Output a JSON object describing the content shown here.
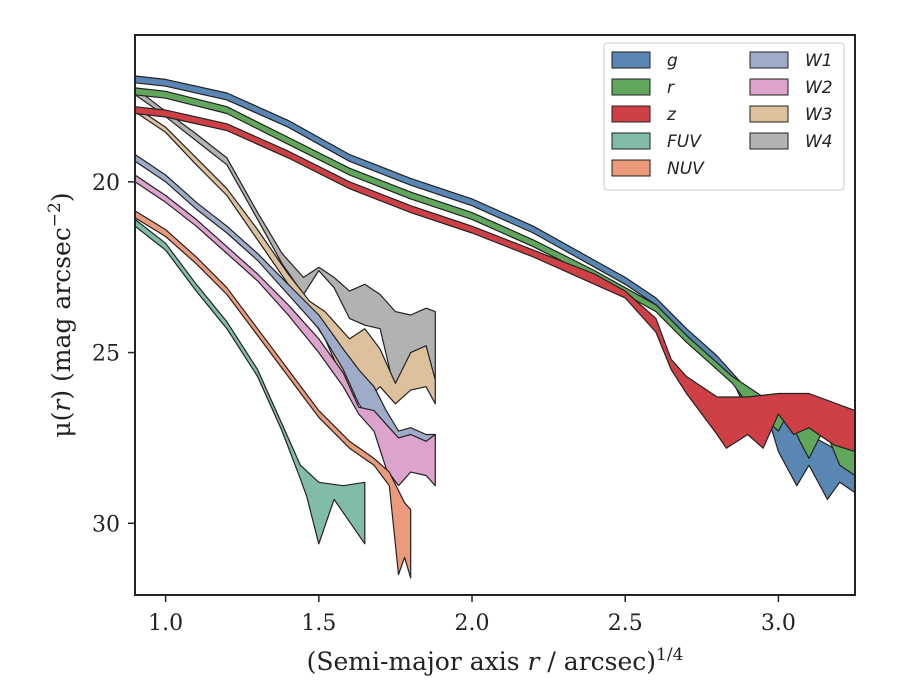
{
  "chart_data": {
    "type": "area",
    "xlabel": {
      "prefix": "(Semi-major axis ",
      "var": "r",
      "mid": " / arcsec)",
      "sup": "1/4"
    },
    "ylabel": {
      "pre": "μ(",
      "var": "r",
      "post": ") (mag arcsec",
      "sup": "−2",
      "end": ")"
    },
    "xlim": [
      0.9,
      3.25
    ],
    "ylim": [
      32.1,
      15.7
    ],
    "y_inverted": true,
    "grid": false,
    "xticks": [
      {
        "v": 1.0,
        "label": "1.0"
      },
      {
        "v": 1.5,
        "label": "1.5"
      },
      {
        "v": 2.0,
        "label": "2.0"
      },
      {
        "v": 2.5,
        "label": "2.5"
      },
      {
        "v": 3.0,
        "label": "3.0"
      }
    ],
    "yticks": [
      {
        "v": 20,
        "label": "20"
      },
      {
        "v": 25,
        "label": "25"
      },
      {
        "v": 30,
        "label": "30"
      }
    ],
    "legend": {
      "position": "top-right",
      "columns": 2
    },
    "series": [
      {
        "name": "W4",
        "color": "#b2b2b2",
        "upper": [
          [
            0.9,
            17.25
          ],
          [
            0.98,
            17.8
          ],
          [
            1.1,
            18.6
          ],
          [
            1.2,
            19.3
          ],
          [
            1.3,
            20.9
          ],
          [
            1.38,
            22.1
          ],
          [
            1.45,
            22.8
          ],
          [
            1.5,
            22.5
          ],
          [
            1.55,
            22.8
          ],
          [
            1.6,
            23.2
          ],
          [
            1.65,
            23.0
          ],
          [
            1.7,
            23.3
          ],
          [
            1.75,
            23.8
          ],
          [
            1.8,
            23.9
          ],
          [
            1.85,
            23.7
          ],
          [
            1.88,
            23.8
          ]
        ],
        "lower": [
          [
            0.9,
            17.45
          ],
          [
            0.98,
            17.95
          ],
          [
            1.1,
            18.8
          ],
          [
            1.2,
            19.5
          ],
          [
            1.3,
            21.1
          ],
          [
            1.38,
            22.4
          ],
          [
            1.45,
            23.3
          ],
          [
            1.5,
            22.6
          ],
          [
            1.55,
            23.1
          ],
          [
            1.6,
            24.0
          ],
          [
            1.65,
            24.2
          ],
          [
            1.7,
            24.3
          ],
          [
            1.75,
            26.2
          ],
          [
            1.8,
            25.0
          ],
          [
            1.85,
            24.9
          ],
          [
            1.88,
            25.8
          ]
        ]
      },
      {
        "name": "W3",
        "color": "#ddc09c",
        "upper": [
          [
            0.9,
            17.8
          ],
          [
            1.0,
            18.4
          ],
          [
            1.1,
            19.3
          ],
          [
            1.2,
            20.2
          ],
          [
            1.3,
            21.4
          ],
          [
            1.4,
            22.7
          ],
          [
            1.47,
            23.5
          ],
          [
            1.52,
            23.8
          ],
          [
            1.56,
            24.2
          ],
          [
            1.6,
            24.6
          ],
          [
            1.65,
            24.3
          ],
          [
            1.7,
            24.9
          ],
          [
            1.75,
            25.9
          ],
          [
            1.8,
            25.0
          ],
          [
            1.85,
            24.8
          ],
          [
            1.88,
            25.8
          ]
        ],
        "lower": [
          [
            0.9,
            17.95
          ],
          [
            1.0,
            18.55
          ],
          [
            1.1,
            19.5
          ],
          [
            1.2,
            20.4
          ],
          [
            1.3,
            21.7
          ],
          [
            1.4,
            23.0
          ],
          [
            1.47,
            23.9
          ],
          [
            1.52,
            24.6
          ],
          [
            1.56,
            25.4
          ],
          [
            1.6,
            26.2
          ],
          [
            1.65,
            26.4
          ],
          [
            1.7,
            26.0
          ],
          [
            1.75,
            26.5
          ],
          [
            1.8,
            26.1
          ],
          [
            1.85,
            26.0
          ],
          [
            1.88,
            26.5
          ]
        ]
      },
      {
        "name": "W1",
        "color": "#9eacc9",
        "upper": [
          [
            0.9,
            19.2
          ],
          [
            1.0,
            19.8
          ],
          [
            1.1,
            20.6
          ],
          [
            1.2,
            21.3
          ],
          [
            1.3,
            22.1
          ],
          [
            1.4,
            23.0
          ],
          [
            1.5,
            23.9
          ],
          [
            1.58,
            24.9
          ],
          [
            1.63,
            25.5
          ],
          [
            1.68,
            26.0
          ],
          [
            1.72,
            26.7
          ],
          [
            1.76,
            27.3
          ],
          [
            1.8,
            27.2
          ],
          [
            1.85,
            27.4
          ],
          [
            1.88,
            27.4
          ]
        ],
        "lower": [
          [
            0.9,
            19.4
          ],
          [
            1.0,
            20.0
          ],
          [
            1.1,
            20.8
          ],
          [
            1.2,
            21.5
          ],
          [
            1.3,
            22.3
          ],
          [
            1.4,
            23.3
          ],
          [
            1.5,
            24.3
          ],
          [
            1.58,
            25.5
          ],
          [
            1.63,
            26.5
          ],
          [
            1.68,
            27.1
          ],
          [
            1.72,
            27.9
          ],
          [
            1.76,
            27.7
          ],
          [
            1.8,
            28.1
          ],
          [
            1.85,
            27.9
          ],
          [
            1.88,
            27.6
          ]
        ]
      },
      {
        "name": "W2",
        "color": "#dca3cc",
        "upper": [
          [
            0.9,
            19.8
          ],
          [
            1.0,
            20.4
          ],
          [
            1.1,
            21.1
          ],
          [
            1.2,
            21.9
          ],
          [
            1.3,
            22.7
          ],
          [
            1.4,
            23.6
          ],
          [
            1.5,
            24.6
          ],
          [
            1.58,
            25.6
          ],
          [
            1.63,
            26.6
          ],
          [
            1.68,
            26.7
          ],
          [
            1.72,
            27.1
          ],
          [
            1.76,
            27.5
          ],
          [
            1.8,
            27.4
          ],
          [
            1.85,
            27.6
          ],
          [
            1.88,
            27.4
          ]
        ],
        "lower": [
          [
            0.9,
            20.0
          ],
          [
            1.0,
            20.6
          ],
          [
            1.1,
            21.3
          ],
          [
            1.2,
            22.1
          ],
          [
            1.3,
            22.9
          ],
          [
            1.4,
            23.9
          ],
          [
            1.5,
            25.0
          ],
          [
            1.58,
            26.0
          ],
          [
            1.63,
            26.8
          ],
          [
            1.68,
            27.3
          ],
          [
            1.72,
            28.4
          ],
          [
            1.76,
            28.9
          ],
          [
            1.8,
            28.5
          ],
          [
            1.85,
            28.6
          ],
          [
            1.88,
            28.9
          ]
        ]
      },
      {
        "name": "NUV",
        "color": "#eb9b7c",
        "upper": [
          [
            0.9,
            20.85
          ],
          [
            1.0,
            21.4
          ],
          [
            1.1,
            22.2
          ],
          [
            1.2,
            23.1
          ],
          [
            1.3,
            24.3
          ],
          [
            1.4,
            25.5
          ],
          [
            1.5,
            26.7
          ],
          [
            1.6,
            27.6
          ],
          [
            1.68,
            28.1
          ],
          [
            1.73,
            28.5
          ],
          [
            1.78,
            29.4
          ],
          [
            1.8,
            29.6
          ]
        ],
        "lower": [
          [
            0.9,
            21.05
          ],
          [
            1.0,
            21.6
          ],
          [
            1.1,
            22.4
          ],
          [
            1.2,
            23.3
          ],
          [
            1.3,
            24.5
          ],
          [
            1.4,
            25.7
          ],
          [
            1.5,
            26.9
          ],
          [
            1.6,
            27.8
          ],
          [
            1.68,
            28.3
          ],
          [
            1.73,
            28.9
          ],
          [
            1.76,
            31.5
          ],
          [
            1.78,
            31.0
          ],
          [
            1.8,
            31.6
          ]
        ]
      },
      {
        "name": "FUV",
        "color": "#80bca8",
        "upper": [
          [
            0.9,
            21.1
          ],
          [
            1.0,
            21.8
          ],
          [
            1.1,
            23.0
          ],
          [
            1.2,
            24.1
          ],
          [
            1.3,
            25.5
          ],
          [
            1.38,
            27.1
          ],
          [
            1.44,
            28.3
          ],
          [
            1.5,
            28.8
          ],
          [
            1.58,
            28.9
          ],
          [
            1.65,
            28.8
          ]
        ],
        "lower": [
          [
            0.9,
            21.3
          ],
          [
            1.0,
            22.0
          ],
          [
            1.1,
            23.2
          ],
          [
            1.2,
            24.3
          ],
          [
            1.3,
            25.7
          ],
          [
            1.38,
            27.3
          ],
          [
            1.44,
            28.7
          ],
          [
            1.46,
            29.2
          ],
          [
            1.5,
            30.6
          ],
          [
            1.55,
            29.3
          ],
          [
            1.65,
            30.6
          ]
        ]
      },
      {
        "name": "g",
        "color": "#5a86b4",
        "upper": [
          [
            0.9,
            16.9
          ],
          [
            1.0,
            17.0
          ],
          [
            1.2,
            17.4
          ],
          [
            1.4,
            18.2
          ],
          [
            1.6,
            19.2
          ],
          [
            1.8,
            19.9
          ],
          [
            2.0,
            20.5
          ],
          [
            2.2,
            21.3
          ],
          [
            2.4,
            22.3
          ],
          [
            2.5,
            22.8
          ],
          [
            2.6,
            23.4
          ],
          [
            2.7,
            24.3
          ],
          [
            2.8,
            25.1
          ],
          [
            2.85,
            25.6
          ],
          [
            2.9,
            26.1
          ],
          [
            3.0,
            26.6
          ],
          [
            3.1,
            27.4
          ],
          [
            3.2,
            27.9
          ],
          [
            3.25,
            28.5
          ]
        ],
        "lower": [
          [
            0.9,
            17.1
          ],
          [
            1.0,
            17.2
          ],
          [
            1.2,
            17.6
          ],
          [
            1.4,
            18.4
          ],
          [
            1.6,
            19.4
          ],
          [
            1.8,
            20.1
          ],
          [
            2.0,
            20.7
          ],
          [
            2.2,
            21.5
          ],
          [
            2.4,
            22.5
          ],
          [
            2.5,
            23.0
          ],
          [
            2.6,
            23.6
          ],
          [
            2.7,
            24.5
          ],
          [
            2.8,
            25.4
          ],
          [
            2.85,
            25.8
          ],
          [
            2.9,
            26.8
          ],
          [
            2.97,
            27.0
          ],
          [
            3.0,
            27.9
          ],
          [
            3.06,
            28.9
          ],
          [
            3.1,
            28.3
          ],
          [
            3.16,
            29.3
          ],
          [
            3.2,
            28.8
          ],
          [
            3.25,
            29.1
          ]
        ]
      },
      {
        "name": "r",
        "color": "#60a75d",
        "upper": [
          [
            0.9,
            17.25
          ],
          [
            1.0,
            17.35
          ],
          [
            1.2,
            17.8
          ],
          [
            1.4,
            18.7
          ],
          [
            1.6,
            19.6
          ],
          [
            1.8,
            20.3
          ],
          [
            2.0,
            20.9
          ],
          [
            2.2,
            21.7
          ],
          [
            2.4,
            22.6
          ],
          [
            2.5,
            23.1
          ],
          [
            2.6,
            23.6
          ],
          [
            2.7,
            24.5
          ],
          [
            2.8,
            25.3
          ],
          [
            2.85,
            25.7
          ],
          [
            2.9,
            26.0
          ],
          [
            3.0,
            26.6
          ],
          [
            3.1,
            26.5
          ],
          [
            3.2,
            26.7
          ],
          [
            3.25,
            27.2
          ]
        ],
        "lower": [
          [
            0.9,
            17.45
          ],
          [
            1.0,
            17.55
          ],
          [
            1.2,
            18.0
          ],
          [
            1.4,
            18.9
          ],
          [
            1.6,
            19.8
          ],
          [
            1.8,
            20.5
          ],
          [
            2.0,
            21.1
          ],
          [
            2.2,
            21.9
          ],
          [
            2.4,
            22.8
          ],
          [
            2.5,
            23.3
          ],
          [
            2.6,
            23.8
          ],
          [
            2.7,
            24.7
          ],
          [
            2.8,
            25.5
          ],
          [
            2.85,
            25.9
          ],
          [
            2.9,
            26.5
          ],
          [
            3.0,
            27.3
          ],
          [
            3.03,
            26.8
          ],
          [
            3.07,
            27.6
          ],
          [
            3.1,
            28.1
          ],
          [
            3.15,
            27.2
          ],
          [
            3.2,
            28.3
          ],
          [
            3.25,
            28.6
          ]
        ]
      },
      {
        "name": "z",
        "color": "#ce4045",
        "upper": [
          [
            0.9,
            17.8
          ],
          [
            1.0,
            17.9
          ],
          [
            1.2,
            18.3
          ],
          [
            1.4,
            19.1
          ],
          [
            1.6,
            20.0
          ],
          [
            1.8,
            20.7
          ],
          [
            2.0,
            21.3
          ],
          [
            2.2,
            22.0
          ],
          [
            2.4,
            22.7
          ],
          [
            2.5,
            23.2
          ],
          [
            2.55,
            23.6
          ],
          [
            2.6,
            24.0
          ],
          [
            2.65,
            25.2
          ],
          [
            2.7,
            25.7
          ],
          [
            2.8,
            26.3
          ],
          [
            2.9,
            26.3
          ],
          [
            3.0,
            26.2
          ],
          [
            3.1,
            26.2
          ],
          [
            3.25,
            26.7
          ]
        ],
        "lower": [
          [
            0.9,
            18.0
          ],
          [
            1.0,
            18.1
          ],
          [
            1.2,
            18.5
          ],
          [
            1.4,
            19.3
          ],
          [
            1.6,
            20.2
          ],
          [
            1.8,
            20.9
          ],
          [
            2.0,
            21.5
          ],
          [
            2.2,
            22.2
          ],
          [
            2.4,
            23.0
          ],
          [
            2.5,
            23.4
          ],
          [
            2.55,
            23.9
          ],
          [
            2.6,
            24.4
          ],
          [
            2.65,
            25.5
          ],
          [
            2.7,
            26.2
          ],
          [
            2.8,
            27.4
          ],
          [
            2.83,
            27.8
          ],
          [
            2.9,
            27.4
          ],
          [
            2.95,
            27.8
          ],
          [
            3.0,
            26.8
          ],
          [
            3.05,
            27.4
          ],
          [
            3.1,
            27.2
          ],
          [
            3.18,
            27.7
          ],
          [
            3.25,
            27.9
          ]
        ]
      }
    ]
  }
}
